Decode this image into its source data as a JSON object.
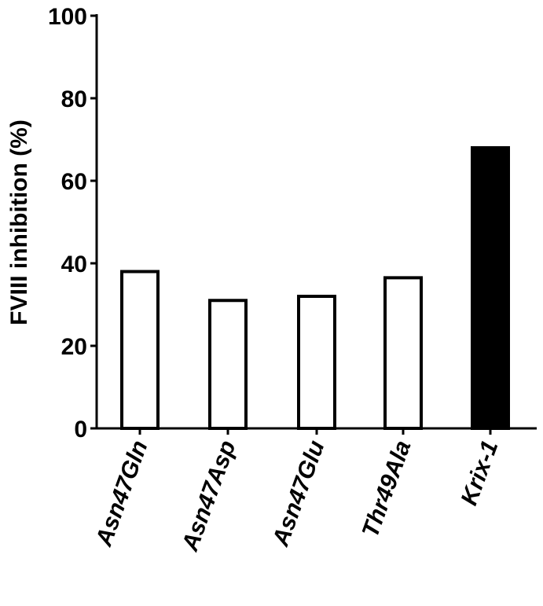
{
  "chart_data": {
    "type": "bar",
    "title": "",
    "xlabel": "",
    "ylabel": "FVIII inhibition (%)",
    "ylim": [
      0,
      100
    ],
    "yticks": [
      0,
      20,
      40,
      60,
      80,
      100
    ],
    "categories": [
      "Asn47Gln",
      "Asn47Asp",
      "Asn47Glu",
      "Thr49Ala",
      "Krix-1"
    ],
    "values": [
      38,
      31,
      32,
      36.5,
      68
    ],
    "bar_fill": [
      "open",
      "open",
      "open",
      "open",
      "filled"
    ],
    "grid": false,
    "legend": "none"
  }
}
